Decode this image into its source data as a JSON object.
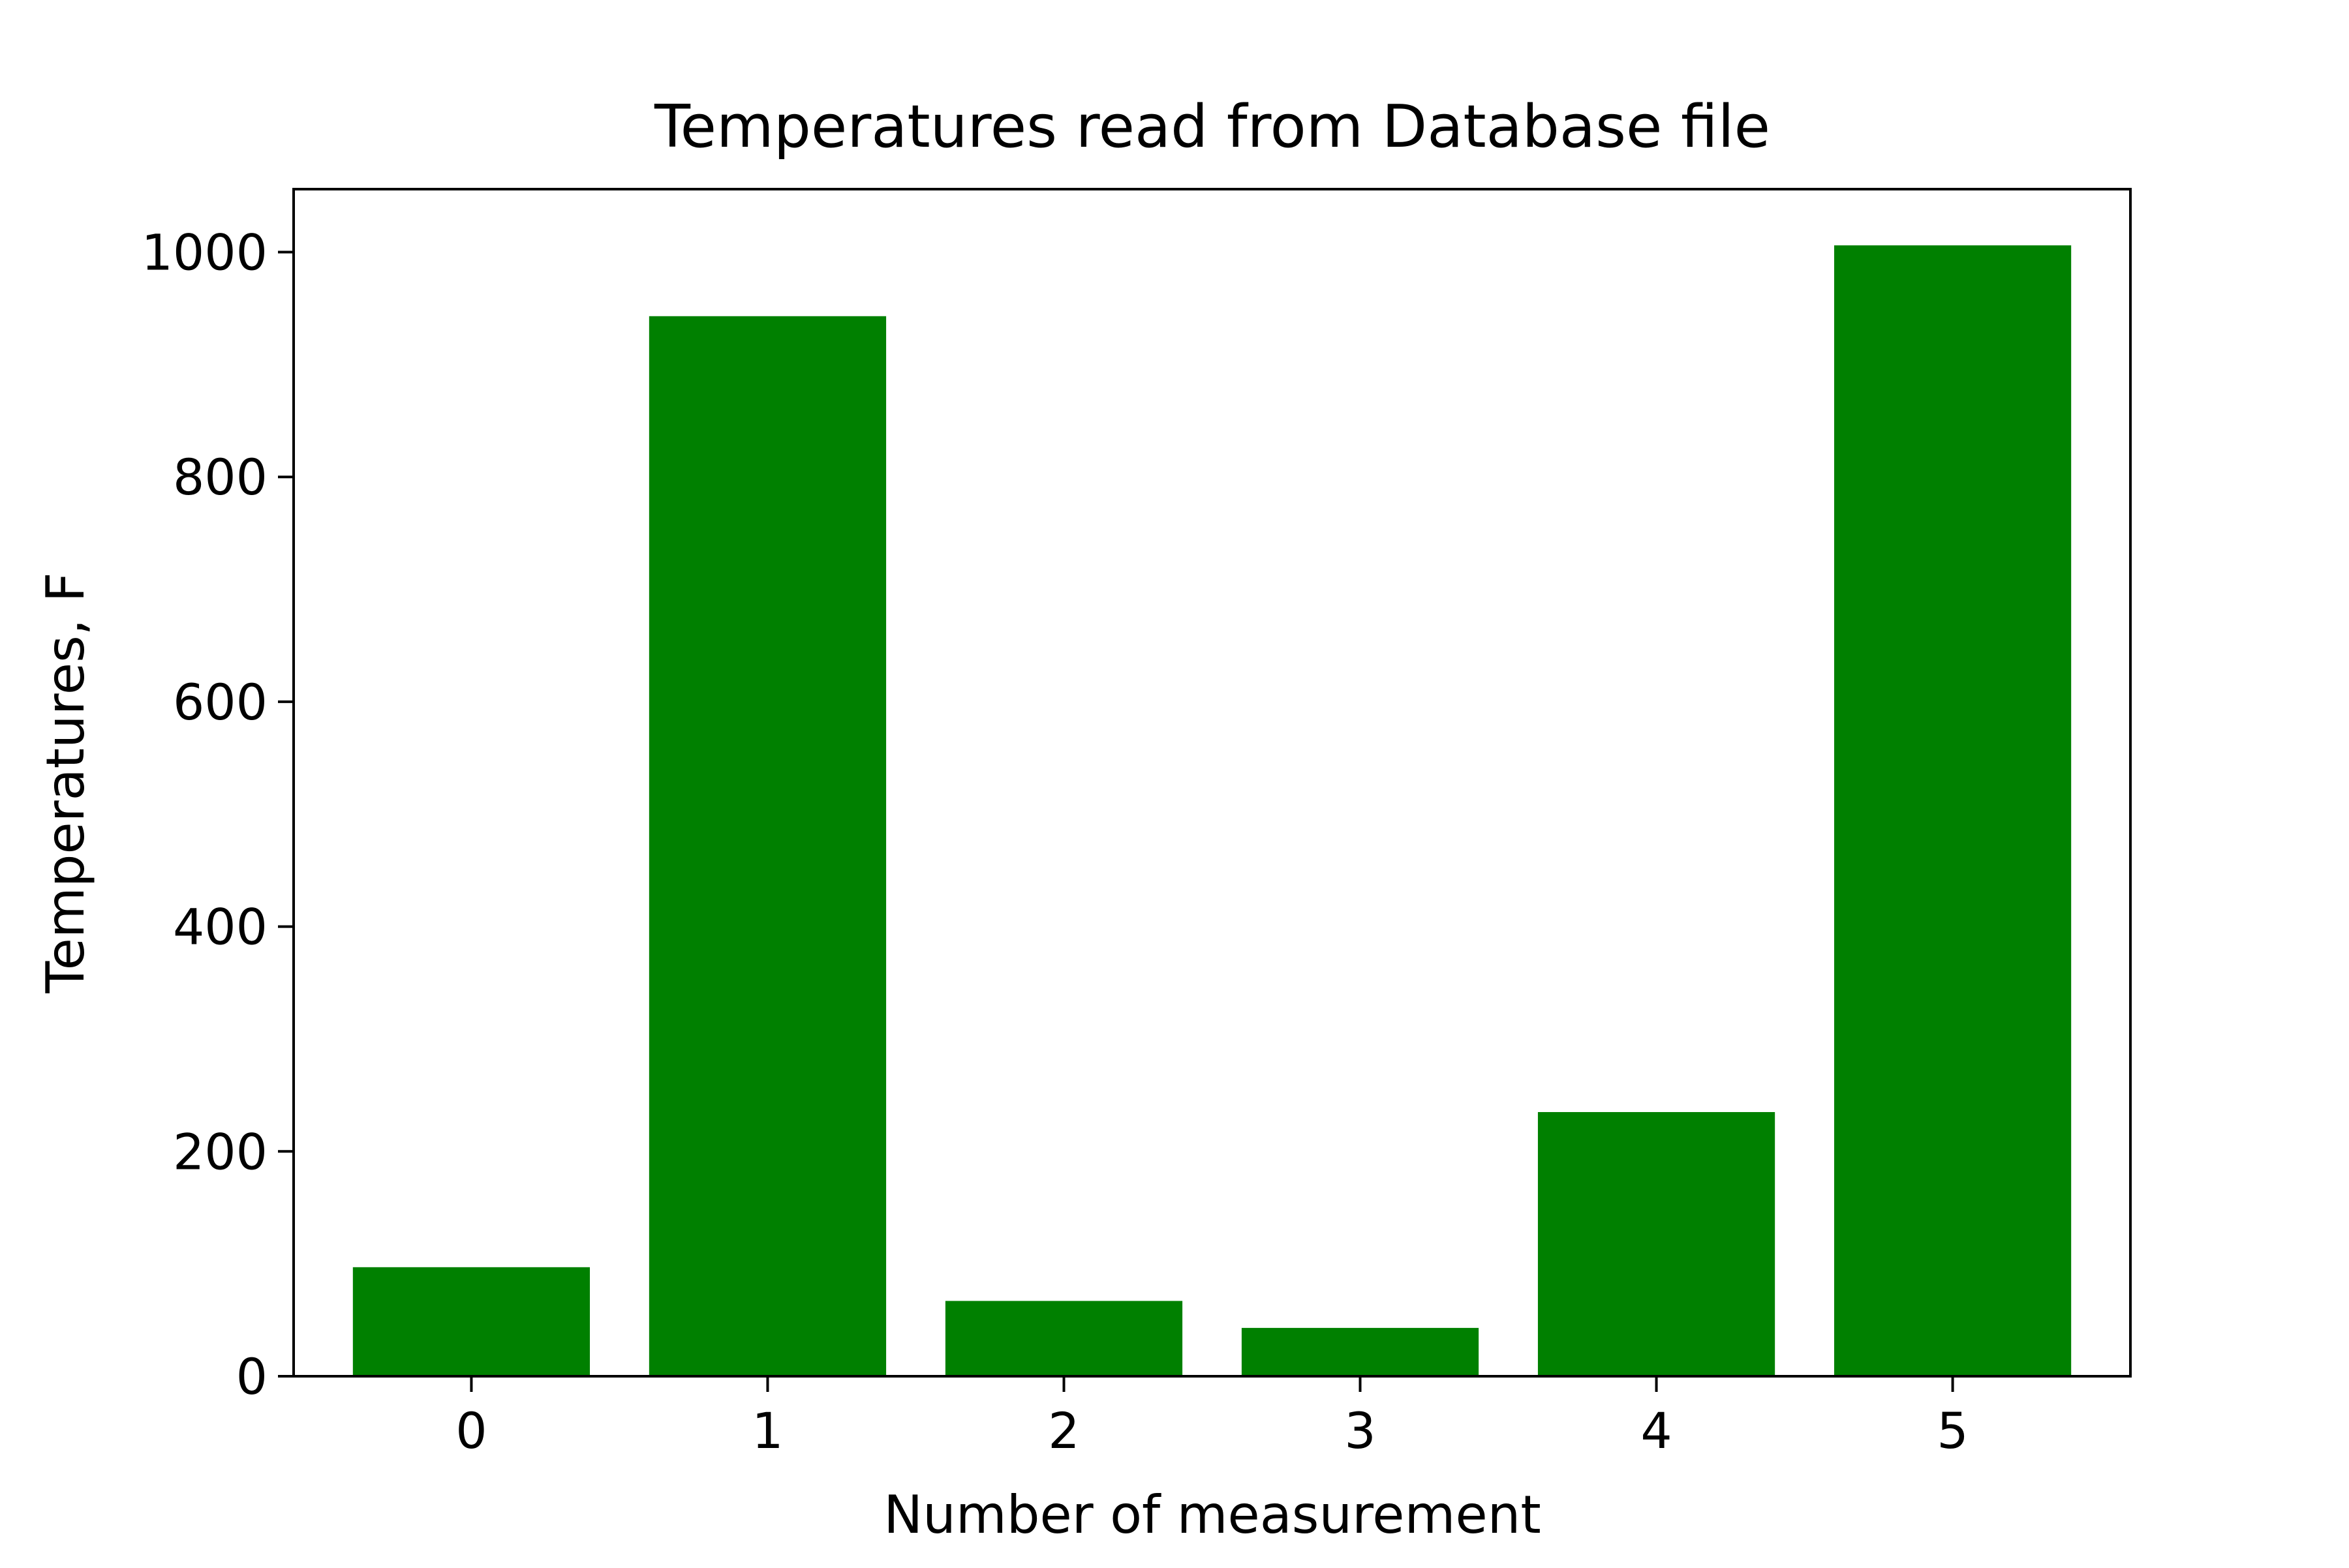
{
  "chart_data": {
    "type": "bar",
    "title": "Temperatures read from Database file",
    "xlabel": "Number of measurement",
    "ylabel": "Temperatures, F",
    "categories": [
      "0",
      "1",
      "2",
      "3",
      "4",
      "5"
    ],
    "values": [
      97,
      943,
      67,
      43,
      235,
      1006
    ],
    "ylim": [
      0,
      1056
    ],
    "yticks": [
      "0",
      "200",
      "400",
      "600",
      "800",
      "1000"
    ],
    "bar_color": "#008000",
    "grid": false,
    "legend": "none"
  }
}
